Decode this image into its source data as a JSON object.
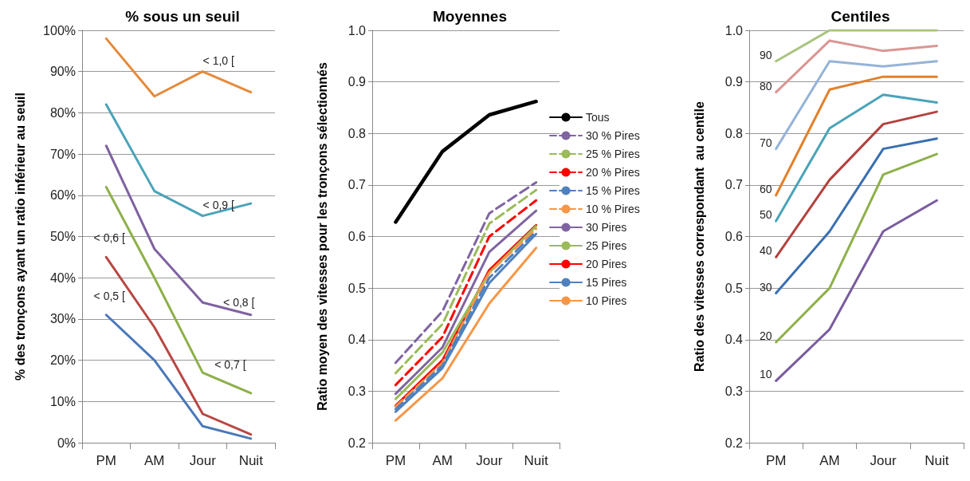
{
  "chart_data": [
    {
      "type": "line",
      "title": "% sous un seuil",
      "ylabel": "% des tronçons ayant un ratio inférieur au seuil",
      "categories": [
        "PM",
        "AM",
        "Jour",
        "Nuit"
      ],
      "ylim": [
        0,
        100
      ],
      "yticks": [
        {
          "value": 0,
          "label": "0%"
        },
        {
          "value": 10,
          "label": "10%"
        },
        {
          "value": 20,
          "label": "20%"
        },
        {
          "value": 30,
          "label": "30%"
        },
        {
          "value": 40,
          "label": "40%"
        },
        {
          "value": 50,
          "label": "50%"
        },
        {
          "value": 60,
          "label": "60%"
        },
        {
          "value": 70,
          "label": "70%"
        },
        {
          "value": 80,
          "label": "80%"
        },
        {
          "value": 90,
          "label": "90%"
        },
        {
          "value": 100,
          "label": "100%"
        }
      ],
      "grid": "y",
      "legend": false,
      "marker": "none",
      "line_style": "solid",
      "series": [
        {
          "name": "< 1,0 [",
          "color": "#e58a3b",
          "values": [
            98,
            84,
            90,
            85
          ]
        },
        {
          "name": "< 0,9 [",
          "color": "#4aa3b8",
          "values": [
            82,
            61,
            55,
            58
          ]
        },
        {
          "name": "< 0,8 [",
          "color": "#7f62a0",
          "values": [
            72,
            47,
            34,
            31
          ]
        },
        {
          "name": "< 0,7 [",
          "color": "#8db04a",
          "values": [
            62,
            40,
            17,
            12
          ]
        },
        {
          "name": "< 0,6 [",
          "color": "#b84743",
          "values": [
            45,
            28,
            7,
            2
          ]
        },
        {
          "name": "< 0,5 [",
          "color": "#4a78b8",
          "values": [
            31,
            20,
            4,
            1
          ]
        }
      ]
    },
    {
      "type": "line",
      "title": "Moyennes",
      "ylabel": "Ratio moyen des vitesses pour les tronçons sélectionnés",
      "categories": [
        "PM",
        "AM",
        "Jour",
        "Nuit"
      ],
      "ylim": [
        0.2,
        1.0
      ],
      "yticks": [
        {
          "value": 0.2,
          "label": "0.2"
        },
        {
          "value": 0.3,
          "label": "0.3"
        },
        {
          "value": 0.4,
          "label": "0.4"
        },
        {
          "value": 0.5,
          "label": "0.5"
        },
        {
          "value": 0.6,
          "label": "0.6"
        },
        {
          "value": 0.7,
          "label": "0.7"
        },
        {
          "value": 0.8,
          "label": "0.8"
        },
        {
          "value": 0.9,
          "label": "0.9"
        },
        {
          "value": 1.0,
          "label": "1.0"
        }
      ],
      "grid": "y",
      "legend": "right",
      "marker": "none",
      "series": [
        {
          "name": "Tous",
          "color": "#000000",
          "line_style": "solid",
          "values": [
            0.628,
            0.765,
            0.836,
            0.862
          ]
        },
        {
          "name": "30 % Pires",
          "color": "#8064a2",
          "line_style": "dashed",
          "values": [
            0.355,
            0.455,
            0.645,
            0.705
          ]
        },
        {
          "name": "25 % Pires",
          "color": "#9bbb59",
          "line_style": "dashed",
          "values": [
            0.335,
            0.43,
            0.625,
            0.69
          ]
        },
        {
          "name": "20 % Pires",
          "color": "#ff0000",
          "line_style": "dashed",
          "values": [
            0.312,
            0.405,
            0.6,
            0.67
          ]
        },
        {
          "name": "15 % Pires",
          "color": "#4f81bd",
          "line_style": "dashed",
          "values": [
            0.265,
            0.35,
            0.52,
            0.61
          ]
        },
        {
          "name": "10 % Pires",
          "color": "#f79646",
          "line_style": "dashed",
          "values": [
            0.27,
            0.355,
            0.53,
            0.615
          ]
        },
        {
          "name": "30 Pires",
          "color": "#8064a2",
          "line_style": "solid",
          "values": [
            0.295,
            0.385,
            0.57,
            0.65
          ]
        },
        {
          "name": "25 Pires",
          "color": "#9bbb59",
          "line_style": "solid",
          "values": [
            0.285,
            0.375,
            0.53,
            0.62
          ]
        },
        {
          "name": "20 Pires",
          "color": "#ff0000",
          "line_style": "solid",
          "values": [
            0.272,
            0.36,
            0.535,
            0.622
          ]
        },
        {
          "name": "15 Pires",
          "color": "#4f81bd",
          "line_style": "solid",
          "values": [
            0.26,
            0.345,
            0.51,
            0.605
          ]
        },
        {
          "name": "10 Pires",
          "color": "#f79646",
          "line_style": "solid",
          "values": [
            0.243,
            0.325,
            0.47,
            0.578
          ]
        }
      ]
    },
    {
      "type": "line",
      "title": "Centiles",
      "ylabel": "Ratio des vitesses correspondant  au centile",
      "categories": [
        "PM",
        "AM",
        "Jour",
        "Nuit"
      ],
      "ylim": [
        0.2,
        1.0
      ],
      "yticks": [
        {
          "value": 0.2,
          "label": "0.2"
        },
        {
          "value": 0.3,
          "label": "0.3"
        },
        {
          "value": 0.4,
          "label": "0.4"
        },
        {
          "value": 0.5,
          "label": "0.5"
        },
        {
          "value": 0.6,
          "label": "0.6"
        },
        {
          "value": 0.7,
          "label": "0.7"
        },
        {
          "value": 0.8,
          "label": "0.8"
        },
        {
          "value": 0.9,
          "label": "0.9"
        },
        {
          "value": 1.0,
          "label": "1.0"
        }
      ],
      "grid": "y",
      "legend": false,
      "marker": "none",
      "line_style": "solid",
      "series": [
        {
          "name": "90",
          "color": "#a9c47f",
          "values": [
            0.94,
            1.0,
            1.0,
            1.0
          ]
        },
        {
          "name": "80",
          "color": "#d99694",
          "values": [
            0.88,
            0.98,
            0.96,
            0.97
          ]
        },
        {
          "name": "70",
          "color": "#95b3d7",
          "values": [
            0.77,
            0.94,
            0.93,
            0.94
          ]
        },
        {
          "name": "60",
          "color": "#e0812c",
          "values": [
            0.68,
            0.885,
            0.91,
            0.91
          ]
        },
        {
          "name": "50",
          "color": "#4aa3b8",
          "values": [
            0.63,
            0.81,
            0.875,
            0.86
          ]
        },
        {
          "name": "40",
          "color": "#b3413e",
          "values": [
            0.56,
            0.71,
            0.818,
            0.842
          ]
        },
        {
          "name": "30",
          "color": "#3a6fb0",
          "values": [
            0.49,
            0.61,
            0.77,
            0.79
          ]
        },
        {
          "name": "20",
          "color": "#8db04a",
          "values": [
            0.395,
            0.5,
            0.72,
            0.76
          ]
        },
        {
          "name": "10",
          "color": "#7a5c9e",
          "values": [
            0.32,
            0.42,
            0.61,
            0.67
          ]
        }
      ]
    }
  ]
}
